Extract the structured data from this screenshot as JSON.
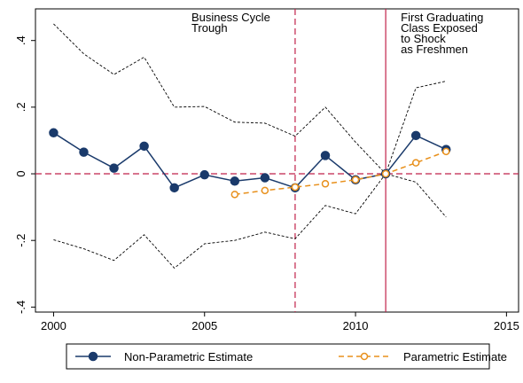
{
  "chart_data": {
    "type": "line",
    "x": [
      2000,
      2001,
      2002,
      2003,
      2004,
      2005,
      2006,
      2007,
      2008,
      2009,
      2010,
      2011,
      2012,
      2013
    ],
    "series": [
      {
        "name": "Non-Parametric Estimate",
        "color": "#1a3a6b",
        "marker": "filled",
        "x": [
          2000,
          2001,
          2002,
          2003,
          2004,
          2005,
          2006,
          2007,
          2008,
          2009,
          2010,
          2011,
          2012,
          2013
        ],
        "values": [
          0.123,
          0.065,
          0.017,
          0.083,
          -0.042,
          -0.003,
          -0.022,
          -0.012,
          -0.042,
          0.055,
          -0.018,
          0,
          0.115,
          0.073
        ]
      },
      {
        "name": "Parametric Estimate",
        "color": "#e8901c",
        "marker": "hollow",
        "dash": true,
        "x": [
          2006,
          2007,
          2008,
          2009,
          2010,
          2011,
          2012,
          2013
        ],
        "values": [
          -0.062,
          -0.05,
          -0.04,
          -0.03,
          -0.018,
          0,
          0.033,
          0.067
        ]
      }
    ],
    "ci_bounds": [
      {
        "values": [
          0.45,
          0.36,
          0.298,
          0.35,
          0.2,
          0.202,
          0.155,
          0.152,
          0.113,
          0.2,
          0.095,
          0,
          0.258,
          0.278
        ]
      },
      {
        "values": [
          -0.198,
          -0.225,
          -0.26,
          -0.183,
          -0.283,
          -0.21,
          -0.2,
          -0.175,
          -0.195,
          -0.095,
          -0.12,
          0,
          -0.025,
          -0.13
        ]
      }
    ],
    "ci_color": "#000000",
    "reference_color": "#c0214a",
    "hline": 0,
    "vlines": [
      {
        "x": 2008,
        "dashed": true,
        "lines": [
          "Business Cycle",
          "Trough"
        ]
      },
      {
        "x": 2011,
        "dashed": false,
        "lines": [
          "First Graduating",
          "Class Exposed",
          "to Shock",
          "as Freshmen"
        ]
      }
    ],
    "xlim": [
      1999.4,
      2015.4
    ],
    "ylim": [
      -0.415,
      0.495
    ],
    "xticks": [
      2000,
      2005,
      2010,
      2015
    ],
    "yticks": [
      {
        "value": 0.4,
        "label": ".4"
      },
      {
        "value": 0.2,
        "label": ".2"
      },
      0,
      {
        "value": -0.2,
        "label": "-.2"
      },
      {
        "value": -0.4,
        "label": "-.4"
      }
    ]
  }
}
